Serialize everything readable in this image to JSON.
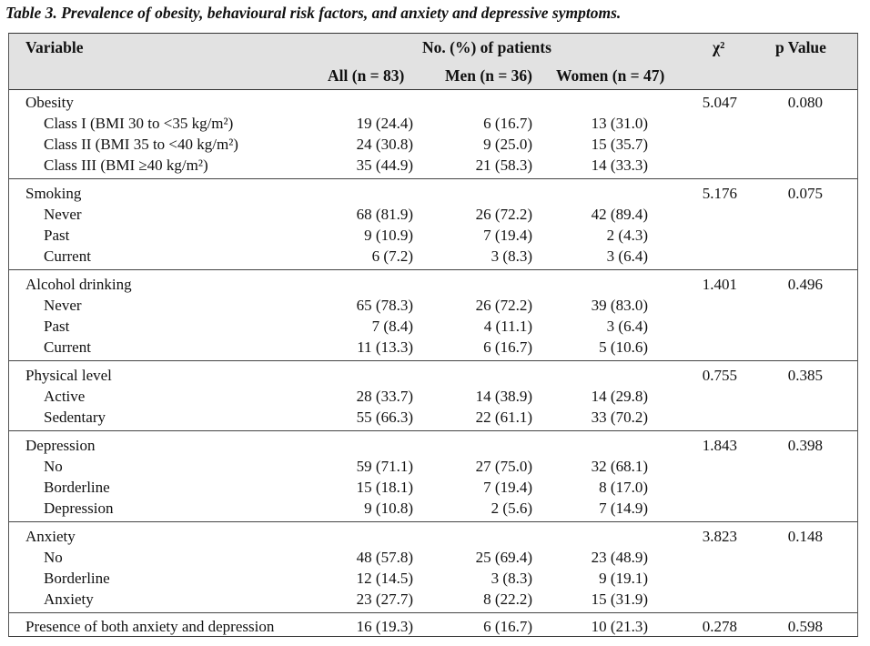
{
  "caption": "Table 3. Prevalence of obesity, behavioural risk factors, and anxiety and depressive symptoms.",
  "header": {
    "variable": "Variable",
    "patients": "No. (%) of patients",
    "all": "All (n = 83)",
    "men": "Men (n = 36)",
    "women": "Women (n = 47)",
    "chi2": "χ²",
    "pvalue": "p Value"
  },
  "groups": [
    {
      "label": "Obesity",
      "chi2": "5.047",
      "p": "0.080",
      "rows": [
        {
          "label": "Class I (BMI 30 to <35 kg/m²)",
          "all": "19 (24.4)",
          "men": "6 (16.7)",
          "women": "13 (31.0)"
        },
        {
          "label": "Class II (BMI 35 to <40 kg/m²)",
          "all": "24 (30.8)",
          "men": "9 (25.0)",
          "women": "15 (35.7)"
        },
        {
          "label": "Class III (BMI ≥40 kg/m²)",
          "all": "35 (44.9)",
          "men": "21 (58.3)",
          "women": "14 (33.3)"
        }
      ]
    },
    {
      "label": "Smoking",
      "chi2": "5.176",
      "p": "0.075",
      "rows": [
        {
          "label": "Never",
          "all": "68 (81.9)",
          "men": "26 (72.2)",
          "women": "42 (89.4)"
        },
        {
          "label": "Past",
          "all": "9 (10.9)",
          "men": "7 (19.4)",
          "women": "2 (4.3)"
        },
        {
          "label": "Current",
          "all": "6 (7.2)",
          "men": "3 (8.3)",
          "women": "3 (6.4)"
        }
      ]
    },
    {
      "label": "Alcohol drinking",
      "chi2": "1.401",
      "p": "0.496",
      "rows": [
        {
          "label": "Never",
          "all": "65 (78.3)",
          "men": "26 (72.2)",
          "women": "39 (83.0)"
        },
        {
          "label": "Past",
          "all": "7 (8.4)",
          "men": "4 (11.1)",
          "women": "3 (6.4)"
        },
        {
          "label": "Current",
          "all": "11 (13.3)",
          "men": "6 (16.7)",
          "women": "5 (10.6)"
        }
      ]
    },
    {
      "label": "Physical level",
      "chi2": "0.755",
      "p": "0.385",
      "rows": [
        {
          "label": "Active",
          "all": "28 (33.7)",
          "men": "14 (38.9)",
          "women": "14 (29.8)"
        },
        {
          "label": "Sedentary",
          "all": "55 (66.3)",
          "men": "22 (61.1)",
          "women": "33 (70.2)"
        }
      ]
    },
    {
      "label": "Depression",
      "chi2": "1.843",
      "p": "0.398",
      "rows": [
        {
          "label": "No",
          "all": "59 (71.1)",
          "men": "27 (75.0)",
          "women": "32 (68.1)"
        },
        {
          "label": "Borderline",
          "all": "15 (18.1)",
          "men": "7 (19.4)",
          "women": "8 (17.0)"
        },
        {
          "label": "Depression",
          "all": "9 (10.8)",
          "men": "2 (5.6)",
          "women": "7 (14.9)"
        }
      ]
    },
    {
      "label": "Anxiety",
      "chi2": "3.823",
      "p": "0.148",
      "rows": [
        {
          "label": "No",
          "all": "48 (57.8)",
          "men": "25 (69.4)",
          "women": "23 (48.9)"
        },
        {
          "label": "Borderline",
          "all": "12 (14.5)",
          "men": "3 (8.3)",
          "women": "9 (19.1)"
        },
        {
          "label": "Anxiety",
          "all": "23 (27.7)",
          "men": "8 (22.2)",
          "women": "15 (31.9)"
        }
      ]
    }
  ],
  "final_row": {
    "label": "Presence of both anxiety and depression",
    "all": "16 (19.3)",
    "men": "6 (16.7)",
    "women": "10 (21.3)",
    "chi2": "0.278",
    "p": "0.598"
  }
}
